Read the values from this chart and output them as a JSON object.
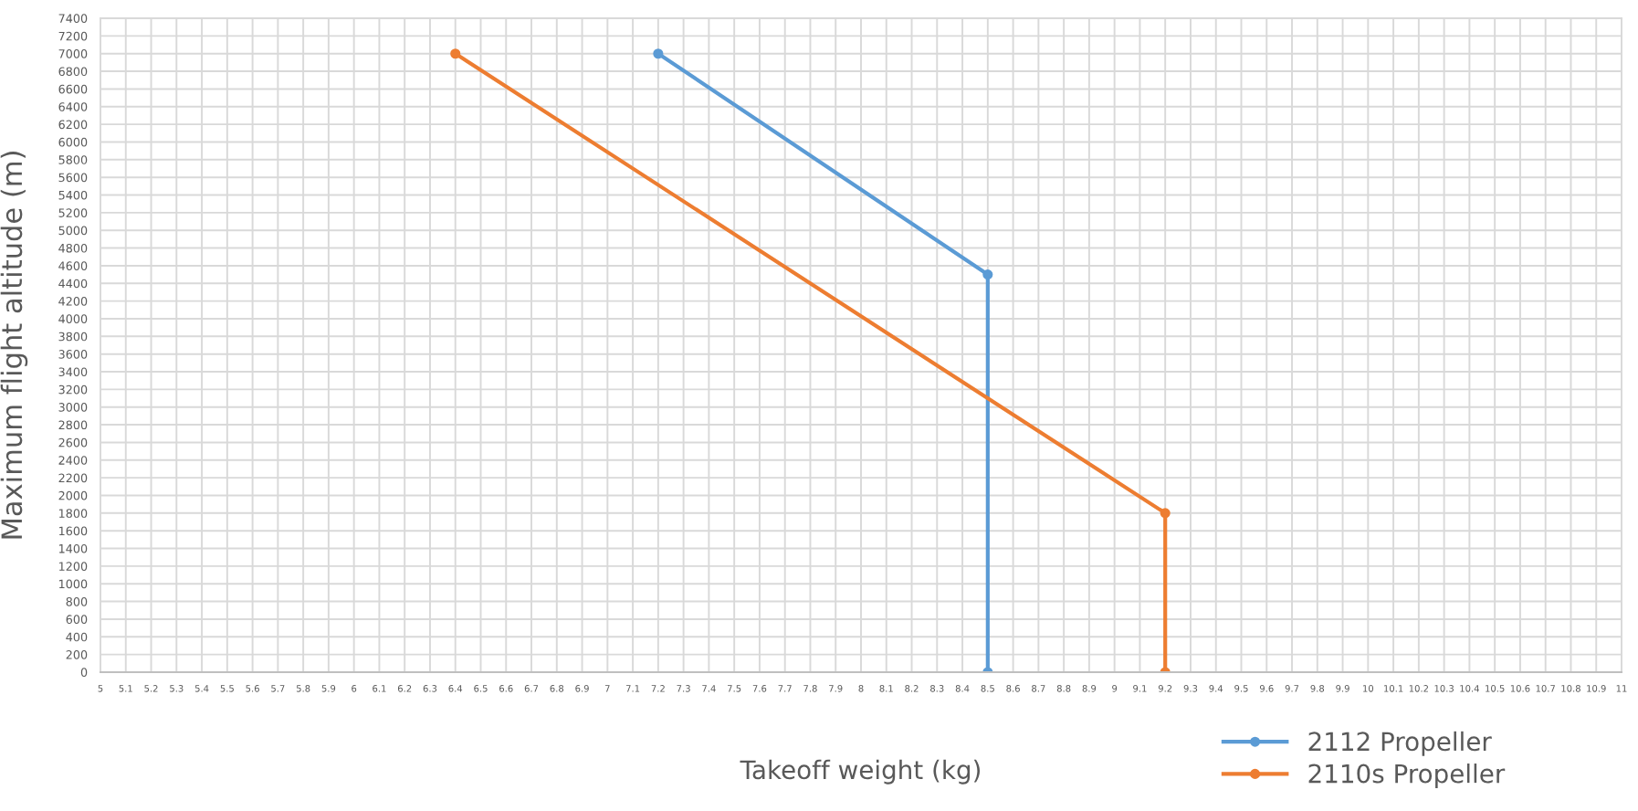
{
  "chart_data": {
    "type": "line",
    "xlabel": "Takeoff weight (kg)",
    "ylabel": "Maximum flight altitude (m)",
    "series": [
      {
        "name": "2112 Propeller",
        "color": "#5b9bd5",
        "x": [
          7.2,
          8.5,
          8.5
        ],
        "values": [
          7000,
          4500,
          0
        ]
      },
      {
        "name": "2110s Propeller",
        "color": "#ed7d31",
        "x": [
          6.4,
          9.2,
          9.2
        ],
        "values": [
          7000,
          1800,
          0
        ]
      }
    ],
    "xlim": [
      5,
      11
    ],
    "ylim": [
      0,
      7400
    ],
    "xticks": [
      5,
      5.1,
      5.2,
      5.3,
      5.4,
      5.5,
      5.6,
      5.7,
      5.8,
      5.9,
      6,
      6.1,
      6.2,
      6.3,
      6.4,
      6.5,
      6.6,
      6.7,
      6.8,
      6.9,
      7,
      7.1,
      7.2,
      7.3,
      7.4,
      7.5,
      7.6,
      7.7,
      7.8,
      7.9,
      8,
      8.1,
      8.2,
      8.3,
      8.4,
      8.5,
      8.6,
      8.7,
      8.8,
      8.9,
      9,
      9.1,
      9.2,
      9.3,
      9.4,
      9.5,
      9.6,
      9.7,
      9.8,
      9.9,
      10,
      10.1,
      10.2,
      10.3,
      10.4,
      10.5,
      10.6,
      10.7,
      10.8,
      10.9,
      11
    ],
    "yticks": [
      0,
      200,
      400,
      600,
      800,
      1000,
      1200,
      1400,
      1600,
      1800,
      2000,
      2200,
      2400,
      2600,
      2800,
      3000,
      3200,
      3400,
      3600,
      3800,
      4000,
      4200,
      4400,
      4600,
      4800,
      5000,
      5200,
      5400,
      5600,
      5800,
      6000,
      6200,
      6400,
      6600,
      6800,
      7000,
      7200,
      7400
    ],
    "grid": true,
    "legend": "bottom right",
    "marker": "circle",
    "line_style": "solid"
  }
}
